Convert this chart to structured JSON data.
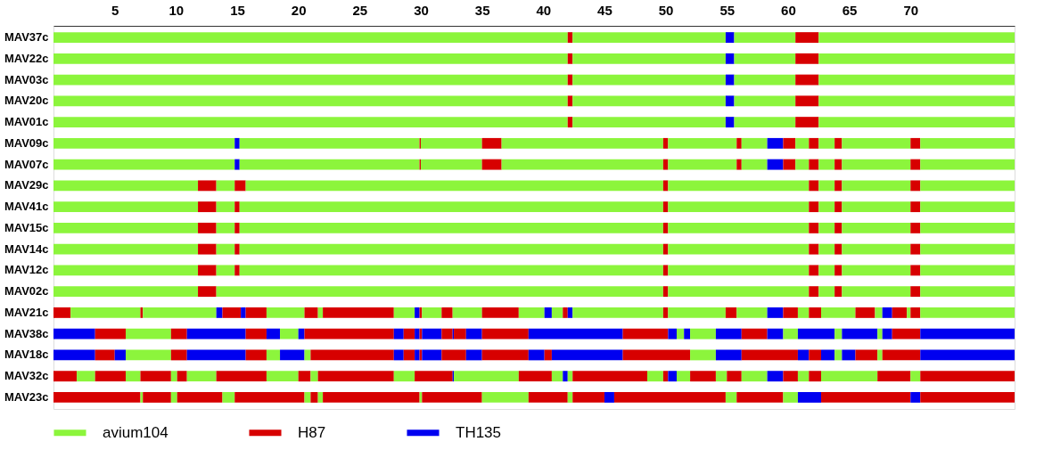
{
  "chart_data": {
    "type": "bar",
    "orientation": "horizontal",
    "stacked": true,
    "legend": "bottom",
    "categories": [
      "MAV37c",
      "MAV22c",
      "MAV03c",
      "MAV20c",
      "MAV01c",
      "MAV09c",
      "MAV07c",
      "MAV29c",
      "MAV41c",
      "MAV15c",
      "MAV14c",
      "MAV12c",
      "MAV02c",
      "MAV21c",
      "MAV38c",
      "MAV18c",
      "MAV32c",
      "MAV23c"
    ],
    "xlim": [
      0,
      78.5
    ],
    "xticks": [
      5,
      10,
      15,
      20,
      25,
      30,
      35,
      40,
      45,
      50,
      55,
      60,
      65,
      70
    ],
    "series": [
      {
        "name": "avium104",
        "color": "#8cf53c",
        "values": [
          null,
          null,
          null,
          null,
          null,
          null,
          null,
          null,
          null,
          null,
          null,
          null,
          null,
          null,
          null,
          null,
          null,
          null
        ]
      },
      {
        "name": "H87",
        "color": "#d70000",
        "values": [
          null,
          null,
          null,
          null,
          null,
          null,
          null,
          null,
          null,
          null,
          null,
          null,
          null,
          null,
          null,
          null,
          null,
          null
        ]
      },
      {
        "name": "TH135",
        "color": "#0000f0",
        "values": [
          null,
          null,
          null,
          null,
          null,
          null,
          null,
          null,
          null,
          null,
          null,
          null,
          null,
          null,
          null,
          null,
          null,
          null
        ]
      },
      {
        "values": [
          42.0,
          42.0,
          42.0,
          42.0,
          42.0,
          14.8,
          14.8,
          11.8,
          11.8,
          11.8,
          11.8,
          11.8,
          11.8,
          1.4,
          3.4,
          3.4,
          1.9,
          7.1
        ],
        "colors": [
          "#8cf53c",
          "#8cf53c",
          "#8cf53c",
          "#8cf53c",
          "#8cf53c",
          "#8cf53c",
          "#8cf53c",
          "#8cf53c",
          "#8cf53c",
          "#8cf53c",
          "#8cf53c",
          "#8cf53c",
          "#8cf53c",
          "#d70000",
          "#0000f0",
          "#0000f0",
          "#d70000",
          "#d70000"
        ]
      },
      {
        "values": [
          0.4,
          0.4,
          0.4,
          0.4,
          0.4,
          0.4,
          0.4,
          1.5,
          1.5,
          1.5,
          1.5,
          1.5,
          1.5,
          5.7,
          2.5,
          1.6,
          1.5,
          0.2
        ],
        "colors": [
          "#d70000",
          "#d70000",
          "#d70000",
          "#d70000",
          "#d70000",
          "#0000f0",
          "#0000f0",
          "#d70000",
          "#d70000",
          "#d70000",
          "#d70000",
          "#d70000",
          "#d70000",
          "#8cf53c",
          "#d70000",
          "#d70000",
          "#8cf53c",
          "#8cf53c"
        ]
      },
      {
        "values": [
          12.5,
          12.5,
          12.5,
          12.5,
          12.5,
          14.7,
          14.7,
          1.5,
          1.5,
          1.5,
          1.5,
          1.5,
          36.5,
          0.2,
          3.7,
          0.9,
          2.5,
          2.3
        ],
        "colors": [
          "#8cf53c",
          "#8cf53c",
          "#8cf53c",
          "#8cf53c",
          "#8cf53c",
          "#8cf53c",
          "#8cf53c",
          "#8cf53c",
          "#8cf53c",
          "#8cf53c",
          "#8cf53c",
          "#8cf53c",
          "#8cf53c",
          "#d70000",
          "#8cf53c",
          "#0000f0",
          "#d70000",
          "#d70000"
        ]
      },
      {
        "values": [
          0.7,
          0.7,
          0.7,
          0.7,
          0.7,
          0.1,
          0.1,
          0.9,
          0.4,
          0.4,
          0.4,
          0.4,
          0.4,
          6.0,
          1.3,
          3.7,
          1.2,
          0.5
        ],
        "colors": [
          "#0000f0",
          "#0000f0",
          "#0000f0",
          "#0000f0",
          "#0000f0",
          "#d70000",
          "#d70000",
          "#d70000",
          "#d70000",
          "#d70000",
          "#d70000",
          "#d70000",
          "#d70000",
          "#8cf53c",
          "#d70000",
          "#8cf53c",
          "#8cf53c",
          "#8cf53c"
        ]
      },
      {
        "values": [
          5.0,
          5.0,
          5.0,
          5.0,
          5.0,
          5.0,
          5.0,
          34.1,
          34.6,
          34.6,
          34.6,
          34.6,
          11.5,
          0.5,
          4.8,
          1.3,
          2.5,
          3.7
        ],
        "colors": [
          "#8cf53c",
          "#8cf53c",
          "#8cf53c",
          "#8cf53c",
          "#8cf53c",
          "#8cf53c",
          "#8cf53c",
          "#8cf53c",
          "#8cf53c",
          "#8cf53c",
          "#8cf53c",
          "#8cf53c",
          "#8cf53c",
          "#0000f0",
          "#0000f0",
          "#d70000",
          "#d70000",
          "#d70000"
        ]
      },
      {
        "values": [
          1.9,
          1.9,
          1.9,
          1.9,
          1.9,
          1.6,
          1.6,
          0.4,
          0.4,
          0.4,
          0.4,
          0.4,
          0.8,
          1.5,
          1.7,
          4.8,
          0.5,
          1.0
        ],
        "colors": [
          "#d70000",
          "#d70000",
          "#d70000",
          "#d70000",
          "#d70000",
          "#d70000",
          "#d70000",
          "#d70000",
          "#d70000",
          "#d70000",
          "#d70000",
          "#d70000",
          "#d70000",
          "#d70000",
          "#d70000",
          "#0000f0",
          "#8cf53c",
          "#8cf53c"
        ]
      },
      {
        "values": [
          16.0,
          16.0,
          16.0,
          16.0,
          16.0,
          13.2,
          13.2,
          11.5,
          11.5,
          11.5,
          11.5,
          11.5,
          1.3,
          0.4,
          1.1,
          1.7,
          0.8,
          5.7
        ],
        "colors": [
          "#8cf53c",
          "#8cf53c",
          "#8cf53c",
          "#8cf53c",
          "#8cf53c",
          "#8cf53c",
          "#8cf53c",
          "#8cf53c",
          "#8cf53c",
          "#8cf53c",
          "#8cf53c",
          "#8cf53c",
          "#8cf53c",
          "#0000f0",
          "#0000f0",
          "#d70000",
          "#d70000",
          "#d70000"
        ]
      },
      {
        "values": [
          null,
          null,
          null,
          null,
          null,
          0.4,
          0.4,
          0.8,
          0.8,
          0.8,
          0.8,
          0.8,
          0.6,
          1.7,
          1.5,
          1.1,
          2.4,
          0.5
        ],
        "colors": [
          null,
          null,
          null,
          null,
          null,
          "#d70000",
          "#d70000",
          "#d70000",
          "#d70000",
          "#d70000",
          "#d70000",
          "#d70000",
          "#d70000",
          "#d70000",
          "#8cf53c",
          "#8cf53c",
          "#8cf53c",
          "#8cf53c"
        ]
      },
      {
        "values": [
          null,
          null,
          null,
          null,
          null,
          5.6,
          5.6,
          1.3,
          1.3,
          1.3,
          1.3,
          1.3,
          5.6,
          3.1,
          0.5,
          2.0,
          4.1,
          0.6
        ],
        "colors": [
          null,
          null,
          null,
          null,
          null,
          "#8cf53c",
          "#8cf53c",
          "#8cf53c",
          "#8cf53c",
          "#8cf53c",
          "#8cf53c",
          "#8cf53c",
          "#8cf53c",
          "#8cf53c",
          "#0000f0",
          "#0000f0",
          "#d70000",
          "#d70000"
        ]
      },
      {
        "values": [
          null,
          null,
          null,
          null,
          null,
          0.4,
          0.4,
          0.6,
          0.6,
          0.6,
          0.6,
          0.6,
          0.8,
          1.1,
          7.3,
          0.5,
          2.6,
          0.4
        ],
        "colors": [
          null,
          null,
          null,
          null,
          null,
          "#d70000",
          "#d70000",
          "#d70000",
          "#d70000",
          "#d70000",
          "#d70000",
          "#d70000",
          "#d70000",
          "#d70000",
          "#d70000",
          "#8cf53c",
          "#8cf53c",
          "#8cf53c"
        ]
      },
      {
        "values": [
          null,
          null,
          null,
          null,
          null,
          2.1,
          2.1,
          5.6,
          5.6,
          5.6,
          5.6,
          5.6,
          7.7,
          0.4,
          0.8,
          6.8,
          1.0,
          7.9
        ],
        "colors": [
          null,
          null,
          null,
          null,
          null,
          "#8cf53c",
          "#8cf53c",
          "#8cf53c",
          "#8cf53c",
          "#8cf53c",
          "#8cf53c",
          "#8cf53c",
          "#8cf53c",
          "#8cf53c",
          "#0000f0",
          "#d70000",
          "#d70000",
          "#d70000"
        ]
      },
      {
        "values": [
          null,
          null,
          null,
          null,
          null,
          1.3,
          1.3,
          0.8,
          0.8,
          0.8,
          0.8,
          0.8,
          null,
          5.8,
          0.9,
          0.8,
          0.6,
          0.2
        ],
        "colors": [
          null,
          null,
          null,
          null,
          null,
          "#0000f0",
          "#0000f0",
          "#d70000",
          "#d70000",
          "#d70000",
          "#d70000",
          "#d70000",
          null,
          "#d70000",
          "#d70000",
          "#0000f0",
          "#8cf53c",
          "#8cf53c"
        ]
      },
      {
        "values": [
          null,
          null,
          null,
          null,
          null,
          1.0,
          1.0,
          7.7,
          7.7,
          7.7,
          7.7,
          7.7,
          null,
          1.7,
          0.4,
          0.9,
          6.2,
          4.9
        ],
        "colors": [
          null,
          null,
          null,
          null,
          null,
          "#d70000",
          "#d70000",
          "#8cf53c",
          "#8cf53c",
          "#8cf53c",
          "#8cf53c",
          "#8cf53c",
          null,
          "#8cf53c",
          "#0000f0",
          "#d70000",
          "#d70000",
          "#d70000"
        ]
      },
      {
        "values": [
          null,
          null,
          null,
          null,
          null,
          1.1,
          1.1,
          null,
          null,
          null,
          null,
          null,
          null,
          0.4,
          0.2,
          0.4,
          1.7,
          3.8
        ],
        "colors": [
          null,
          null,
          null,
          null,
          null,
          "#8cf53c",
          "#8cf53c",
          null,
          null,
          null,
          null,
          null,
          null,
          "#0000f0",
          "#d70000",
          "#0000f0",
          "#8cf53c",
          "#8cf53c"
        ]
      },
      {
        "values": [
          null,
          null,
          null,
          null,
          null,
          0.8,
          0.8,
          null,
          null,
          null,
          null,
          null,
          null,
          0.2,
          1.6,
          0.2,
          3.1,
          3.2
        ],
        "colors": [
          null,
          null,
          null,
          null,
          null,
          "#d70000",
          "#d70000",
          null,
          null,
          null,
          null,
          null,
          null,
          "#d70000",
          "#0000f0",
          "#d70000",
          "#d70000",
          "#d70000"
        ]
      },
      {
        "values": [
          null,
          null,
          null,
          null,
          null,
          1.3,
          1.3,
          null,
          null,
          null,
          null,
          null,
          null,
          1.6,
          0.9,
          1.6,
          0.1,
          0.4
        ],
        "colors": [
          null,
          null,
          null,
          null,
          null,
          "#8cf53c",
          "#8cf53c",
          null,
          null,
          null,
          null,
          null,
          null,
          "#8cf53c",
          "#d70000",
          "#0000f0",
          "#0000f0",
          "#8cf53c"
        ]
      },
      {
        "values": [
          null,
          null,
          null,
          null,
          null,
          0.6,
          0.6,
          null,
          null,
          null,
          null,
          null,
          null,
          0.9,
          0.1,
          2.0,
          5.3,
          2.6
        ],
        "colors": [
          null,
          null,
          null,
          null,
          null,
          "#d70000",
          "#d70000",
          null,
          null,
          null,
          null,
          null,
          null,
          "#d70000",
          "#0000f0",
          "#d70000",
          "#8cf53c",
          "#d70000"
        ]
      },
      {
        "values": [
          null,
          null,
          null,
          null,
          null,
          5.6,
          5.6,
          null,
          null,
          null,
          null,
          null,
          null,
          2.4,
          1.0,
          1.3,
          2.7,
          0.8
        ],
        "colors": [
          null,
          null,
          null,
          null,
          null,
          "#8cf53c",
          "#8cf53c",
          null,
          null,
          null,
          null,
          null,
          null,
          "#8cf53c",
          "#d70000",
          "#0000f0",
          "#d70000",
          "#0000f0"
        ]
      },
      {
        "values": [
          null,
          null,
          null,
          null,
          null,
          0.8,
          0.8,
          null,
          null,
          null,
          null,
          null,
          null,
          3.0,
          1.3,
          3.8,
          0.9,
          9.1
        ],
        "colors": [
          null,
          null,
          null,
          null,
          null,
          "#d70000",
          "#d70000",
          null,
          null,
          null,
          null,
          null,
          null,
          "#d70000",
          "#0000f0",
          "#d70000",
          "#8cf53c",
          "#d70000"
        ]
      },
      {
        "values": [
          null,
          null,
          null,
          null,
          null,
          7.7,
          7.7,
          null,
          null,
          null,
          null,
          null,
          null,
          2.1,
          3.8,
          1.3,
          0.4,
          0.9
        ],
        "colors": [
          null,
          null,
          null,
          null,
          null,
          "#8cf53c",
          "#8cf53c",
          null,
          null,
          null,
          null,
          null,
          null,
          "#8cf53c",
          "#d70000",
          "#0000f0",
          "#0000f0",
          "#8cf53c"
        ]
      },
      {
        "values": [
          null,
          null,
          null,
          null,
          null,
          null,
          null,
          null,
          null,
          null,
          null,
          null,
          null,
          0.6,
          7.7,
          0.6,
          0.4,
          3.8
        ],
        "colors": [
          null,
          null,
          null,
          null,
          null,
          null,
          null,
          null,
          null,
          null,
          null,
          null,
          null,
          "#0000f0",
          "#0000f0",
          "#d70000",
          "#8cf53c",
          "#d70000"
        ]
      },
      {
        "values": [
          null,
          null,
          null,
          null,
          null,
          null,
          null,
          null,
          null,
          null,
          null,
          null,
          null,
          0.9,
          3.7,
          5.8,
          6.1,
          1.2
        ],
        "colors": [
          null,
          null,
          null,
          null,
          null,
          null,
          null,
          null,
          null,
          null,
          null,
          null,
          null,
          "#8cf53c",
          "#d70000",
          "#0000f0",
          "#d70000",
          "#8cf53c"
        ]
      },
      {
        "values": [
          null,
          null,
          null,
          null,
          null,
          null,
          null,
          null,
          null,
          null,
          null,
          null,
          null,
          0.4,
          0.7,
          5.5,
          1.3,
          1.9
        ],
        "colors": [
          null,
          null,
          null,
          null,
          null,
          null,
          null,
          null,
          null,
          null,
          null,
          null,
          null,
          "#d70000",
          "#0000f0",
          "#d70000",
          "#8cf53c",
          "#0000f0"
        ]
      },
      {
        "values": [
          null,
          null,
          null,
          null,
          null,
          null,
          null,
          null,
          null,
          null,
          null,
          null,
          null,
          0.4,
          0.6,
          2.1,
          0.4,
          7.3
        ],
        "colors": [
          null,
          null,
          null,
          null,
          null,
          null,
          null,
          null,
          null,
          null,
          null,
          null,
          null,
          "#0000f0",
          "#8cf53c",
          "#8cf53c",
          "#d70000",
          "#d70000"
        ]
      },
      {
        "values": [
          null,
          null,
          null,
          null,
          null,
          null,
          null,
          null,
          null,
          null,
          null,
          null,
          null,
          7.4,
          0.5,
          2.1,
          0.7,
          0.8
        ],
        "colors": [
          null,
          null,
          null,
          null,
          null,
          null,
          null,
          null,
          null,
          null,
          null,
          null,
          null,
          "#8cf53c",
          "#0000f0",
          "#0000f0",
          "#0000f0",
          "#0000f0"
        ]
      },
      {
        "values": [
          null,
          null,
          null,
          null,
          null,
          null,
          null,
          null,
          null,
          null,
          null,
          null,
          null,
          0.4,
          2.1,
          4.6,
          1.1,
          7.7
        ],
        "colors": [
          null,
          null,
          null,
          null,
          null,
          null,
          null,
          null,
          null,
          null,
          null,
          null,
          null,
          "#d70000",
          "#8cf53c",
          "#d70000",
          "#8cf53c",
          "#d70000"
        ]
      },
      {
        "values": [
          null,
          null,
          null,
          null,
          null,
          null,
          null,
          null,
          null,
          null,
          null,
          null,
          null,
          4.7,
          2.1,
          0.9,
          2.1,
          null
        ],
        "colors": [
          null,
          null,
          null,
          null,
          null,
          null,
          null,
          null,
          null,
          null,
          null,
          null,
          null,
          "#8cf53c",
          "#0000f0",
          "#0000f0",
          "#d70000",
          null
        ]
      },
      {
        "values": [
          null,
          null,
          null,
          null,
          null,
          null,
          null,
          null,
          null,
          null,
          null,
          null,
          null,
          0.9,
          2.1,
          1.0,
          0.9,
          null
        ],
        "colors": [
          null,
          null,
          null,
          null,
          null,
          null,
          null,
          null,
          null,
          null,
          null,
          null,
          null,
          "#d70000",
          "#d70000",
          "#d70000",
          "#8cf53c",
          null
        ]
      },
      {
        "values": [
          null,
          null,
          null,
          null,
          null,
          null,
          null,
          null,
          null,
          null,
          null,
          null,
          null,
          2.5,
          1.3,
          1.1,
          1.2,
          null
        ],
        "colors": [
          null,
          null,
          null,
          null,
          null,
          null,
          null,
          null,
          null,
          null,
          null,
          null,
          null,
          "#8cf53c",
          "#0000f0",
          "#0000f0",
          "#d70000",
          null
        ]
      },
      {
        "values": [
          null,
          null,
          null,
          null,
          null,
          null,
          null,
          null,
          null,
          null,
          null,
          null,
          null,
          1.3,
          1.2,
          0.6,
          2.1,
          null
        ],
        "colors": [
          null,
          null,
          null,
          null,
          null,
          null,
          null,
          null,
          null,
          null,
          null,
          null,
          null,
          "#0000f0",
          "#8cf53c",
          "#8cf53c",
          "#8cf53c",
          null
        ]
      },
      {
        "values": [
          null,
          null,
          null,
          null,
          null,
          null,
          null,
          null,
          null,
          null,
          null,
          null,
          null,
          1.2,
          3.0,
          1.1,
          1.3,
          null
        ],
        "colors": [
          null,
          null,
          null,
          null,
          null,
          null,
          null,
          null,
          null,
          null,
          null,
          null,
          null,
          "#d70000",
          "#0000f0",
          "#0000f0",
          "#0000f0",
          null
        ]
      },
      {
        "values": [
          null,
          null,
          null,
          null,
          null,
          null,
          null,
          null,
          null,
          null,
          null,
          null,
          null,
          0.9,
          0.6,
          1.8,
          1.2,
          null
        ],
        "colors": [
          null,
          null,
          null,
          null,
          null,
          null,
          null,
          null,
          null,
          null,
          null,
          null,
          null,
          "#8cf53c",
          "#8cf53c",
          "#d70000",
          "#d70000",
          null
        ]
      },
      {
        "values": [
          null,
          null,
          null,
          null,
          null,
          null,
          null,
          null,
          null,
          null,
          null,
          null,
          null,
          1.0,
          2.9,
          0.4,
          0.9,
          null
        ],
        "colors": [
          null,
          null,
          null,
          null,
          null,
          null,
          null,
          null,
          null,
          null,
          null,
          null,
          null,
          "#d70000",
          "#0000f0",
          "#8cf53c",
          "#8cf53c",
          null
        ]
      },
      {
        "values": [
          null,
          null,
          null,
          null,
          null,
          null,
          null,
          null,
          null,
          null,
          null,
          null,
          null,
          2.8,
          0.4,
          3.1,
          1.0,
          null
        ],
        "colors": [
          null,
          null,
          null,
          null,
          null,
          null,
          null,
          null,
          null,
          null,
          null,
          null,
          null,
          "#8cf53c",
          "#8cf53c",
          "#d70000",
          "#d70000",
          null
        ]
      },
      {
        "values": [
          null,
          null,
          null,
          null,
          null,
          null,
          null,
          null,
          null,
          null,
          null,
          null,
          null,
          1.6,
          0.8,
          7.7,
          4.6,
          null
        ],
        "colors": [
          null,
          null,
          null,
          null,
          null,
          null,
          null,
          null,
          null,
          null,
          null,
          null,
          null,
          "#d70000",
          "#0000f0",
          "#0000f0",
          "#8cf53c",
          null
        ]
      },
      {
        "values": [
          null,
          null,
          null,
          null,
          null,
          null,
          null,
          null,
          null,
          null,
          null,
          null,
          null,
          0.6,
          2.3,
          null,
          2.7,
          null
        ],
        "colors": [
          null,
          null,
          null,
          null,
          null,
          null,
          null,
          null,
          null,
          null,
          null,
          null,
          null,
          "#8cf53c",
          "#d70000",
          null,
          "#d70000",
          null
        ]
      },
      {
        "values": [
          null,
          null,
          null,
          null,
          null,
          null,
          null,
          null,
          null,
          null,
          null,
          null,
          null,
          0.8,
          7.7,
          null,
          0.8,
          null
        ],
        "colors": [
          null,
          null,
          null,
          null,
          null,
          null,
          null,
          null,
          null,
          null,
          null,
          null,
          null,
          "#0000f0",
          "#0000f0",
          null,
          "#8cf53c",
          null
        ]
      },
      {
        "values": [
          null,
          null,
          null,
          null,
          null,
          null,
          null,
          null,
          null,
          null,
          null,
          null,
          null,
          1.2,
          null,
          null,
          7.7,
          null
        ],
        "colors": [
          null,
          null,
          null,
          null,
          null,
          null,
          null,
          null,
          null,
          null,
          null,
          null,
          null,
          "#d70000",
          null,
          null,
          "#d70000",
          null
        ]
      },
      {
        "values": [
          null,
          null,
          null,
          null,
          null,
          null,
          null,
          null,
          null,
          null,
          null,
          null,
          null,
          0.3,
          null,
          null,
          null,
          null
        ],
        "colors": [
          null,
          null,
          null,
          null,
          null,
          null,
          null,
          null,
          null,
          null,
          null,
          null,
          null,
          "#8cf53c",
          null,
          null,
          null,
          null
        ]
      },
      {
        "values": [
          null,
          null,
          null,
          null,
          null,
          null,
          null,
          null,
          null,
          null,
          null,
          null,
          null,
          0.8,
          null,
          null,
          null,
          null
        ],
        "colors": [
          null,
          null,
          null,
          null,
          null,
          null,
          null,
          null,
          null,
          null,
          null,
          null,
          null,
          "#d70000",
          null,
          null,
          null,
          null
        ]
      },
      {
        "values": [
          null,
          null,
          null,
          null,
          null,
          null,
          null,
          null,
          null,
          null,
          null,
          null,
          null,
          7.7,
          null,
          null,
          null,
          null
        ],
        "colors": [
          null,
          null,
          null,
          null,
          null,
          null,
          null,
          null,
          null,
          null,
          null,
          null,
          null,
          "#8cf53c",
          null,
          null,
          null,
          null
        ]
      }
    ]
  }
}
